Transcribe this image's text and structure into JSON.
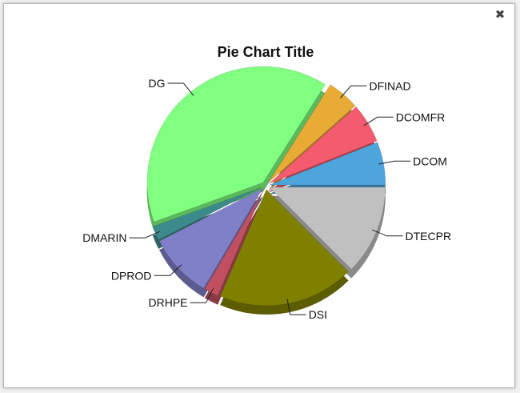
{
  "window": {
    "close_icon": "close-icon",
    "close_glyph": "✖"
  },
  "chart_data": {
    "type": "pie",
    "title": "Pie Chart Title",
    "slices": [
      {
        "label": "DCOM",
        "value": 6.0,
        "color": "#4ea5dc"
      },
      {
        "label": "DCOMFR",
        "value": 5.5,
        "color": "#f45b6e"
      },
      {
        "label": "DFINAD",
        "value": 4.5,
        "color": "#e8ab35"
      },
      {
        "label": "DG",
        "value": 39.5,
        "color": "#80ff80"
      },
      {
        "label": "DMARIN",
        "value": 2.0,
        "color": "#3d8a8a"
      },
      {
        "label": "DPROD",
        "value": 9.0,
        "color": "#8080c8"
      },
      {
        "label": "DRHPE",
        "value": 2.0,
        "color": "#c05060"
      },
      {
        "label": "DSI",
        "value": 19.0,
        "color": "#808000"
      },
      {
        "label": "DTECPR",
        "value": 12.5,
        "color": "#c0c0c0"
      }
    ]
  }
}
